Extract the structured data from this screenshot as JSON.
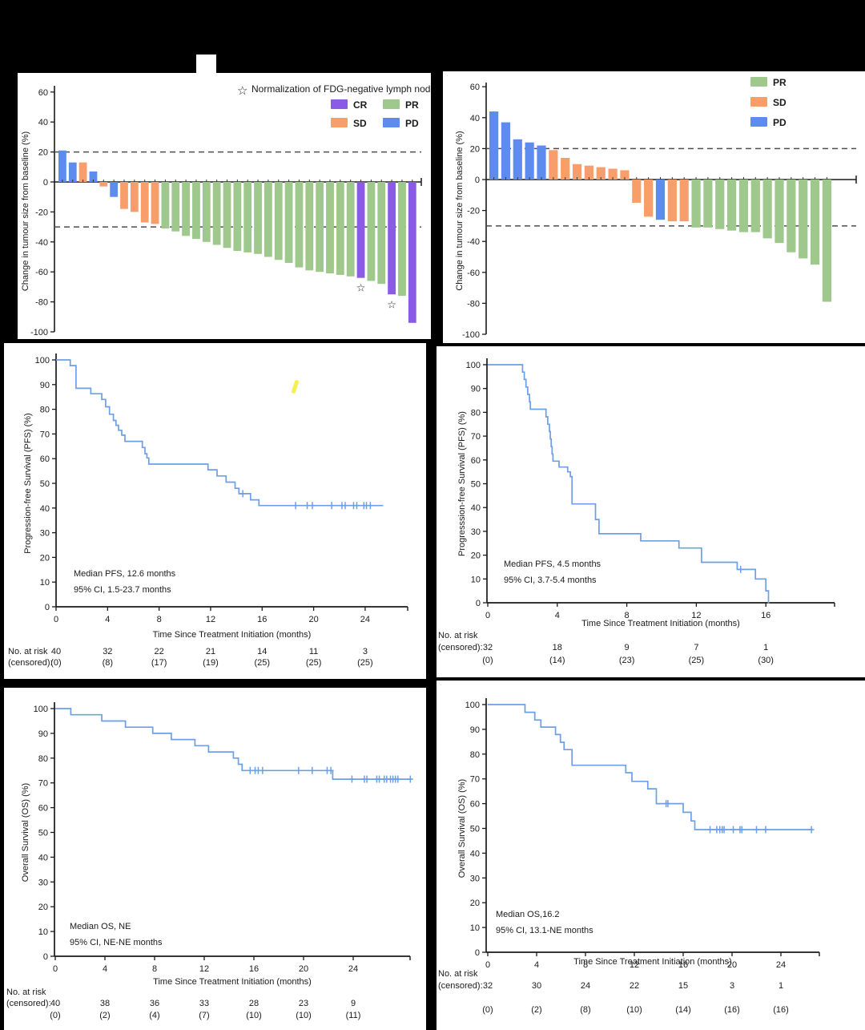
{
  "colors": {
    "page_background": "#000000",
    "panel_background": "#ffffff",
    "axis": "#1a1a1a",
    "dashed_reference": "#4d4d4d",
    "km_line": "#6d9fe6",
    "response_CR": "#8a5ce6",
    "response_SD": "#f89e6b",
    "response_PR": "#9fc98c",
    "response_PD": "#5c8cee",
    "pen_mark": "#f2ee3f"
  },
  "chart_data": [
    {
      "id": "waterfall_study_a",
      "type": "bar",
      "ylabel": "Change in tumour size from baseline (%)",
      "ylim": [
        -100,
        60
      ],
      "yticks": [
        60,
        40,
        20,
        0,
        -20,
        -40,
        -60,
        -80,
        -100
      ],
      "reference_lines": [
        20,
        -30
      ],
      "star_note": "Normalization of FDG-negative lymph node",
      "star_glyph": "☆",
      "legend": [
        {
          "label": "CR",
          "color_key": "response_CR"
        },
        {
          "label": "SD",
          "color_key": "response_SD"
        },
        {
          "label": "PR",
          "color_key": "response_PR"
        },
        {
          "label": "PD",
          "color_key": "response_PD"
        }
      ],
      "bars": [
        {
          "response": "PD",
          "value": 21
        },
        {
          "response": "PD",
          "value": 13
        },
        {
          "response": "SD",
          "value": 13
        },
        {
          "response": "PD",
          "value": 7
        },
        {
          "response": "SD",
          "value": -3
        },
        {
          "response": "PD",
          "value": -10
        },
        {
          "response": "SD",
          "value": -18
        },
        {
          "response": "SD",
          "value": -20
        },
        {
          "response": "SD",
          "value": -27
        },
        {
          "response": "SD",
          "value": -28
        },
        {
          "response": "PR",
          "value": -31
        },
        {
          "response": "PR",
          "value": -33
        },
        {
          "response": "PR",
          "value": -36
        },
        {
          "response": "PR",
          "value": -38
        },
        {
          "response": "PR",
          "value": -40
        },
        {
          "response": "PR",
          "value": -42
        },
        {
          "response": "PR",
          "value": -44
        },
        {
          "response": "PR",
          "value": -46
        },
        {
          "response": "PR",
          "value": -47
        },
        {
          "response": "PR",
          "value": -48
        },
        {
          "response": "PR",
          "value": -50
        },
        {
          "response": "PR",
          "value": -52
        },
        {
          "response": "PR",
          "value": -54
        },
        {
          "response": "PR",
          "value": -57
        },
        {
          "response": "PR",
          "value": -59
        },
        {
          "response": "PR",
          "value": -60
        },
        {
          "response": "PR",
          "value": -61
        },
        {
          "response": "PR",
          "value": -62
        },
        {
          "response": "PR",
          "value": -63
        },
        {
          "response": "CR",
          "value": -64,
          "star": true
        },
        {
          "response": "PR",
          "value": -66
        },
        {
          "response": "PR",
          "value": -68
        },
        {
          "response": "CR",
          "value": -75,
          "star": true
        },
        {
          "response": "PR",
          "value": -76
        },
        {
          "response": "CR",
          "value": -94
        }
      ]
    },
    {
      "id": "waterfall_study_b",
      "type": "bar",
      "ylabel": "Change in tumour size from baseline (%)",
      "ylim": [
        -100,
        60
      ],
      "yticks": [
        60,
        40,
        20,
        0,
        -20,
        -40,
        -60,
        -80,
        -100
      ],
      "reference_lines": [
        20,
        -30
      ],
      "legend": [
        {
          "label": "PR",
          "color_key": "response_PR"
        },
        {
          "label": "SD",
          "color_key": "response_SD"
        },
        {
          "label": "PD",
          "color_key": "response_PD"
        }
      ],
      "bars": [
        {
          "response": "PD",
          "value": 44
        },
        {
          "response": "PD",
          "value": 37
        },
        {
          "response": "PD",
          "value": 26
        },
        {
          "response": "PD",
          "value": 24
        },
        {
          "response": "PD",
          "value": 22
        },
        {
          "response": "SD",
          "value": 19
        },
        {
          "response": "SD",
          "value": 14
        },
        {
          "response": "SD",
          "value": 10
        },
        {
          "response": "SD",
          "value": 9
        },
        {
          "response": "SD",
          "value": 8
        },
        {
          "response": "SD",
          "value": 7
        },
        {
          "response": "SD",
          "value": 6
        },
        {
          "response": "SD",
          "value": -15
        },
        {
          "response": "SD",
          "value": -24
        },
        {
          "response": "PD",
          "value": -26
        },
        {
          "response": "SD",
          "value": -27
        },
        {
          "response": "SD",
          "value": -27
        },
        {
          "response": "PR",
          "value": -31
        },
        {
          "response": "PR",
          "value": -31
        },
        {
          "response": "PR",
          "value": -32
        },
        {
          "response": "PR",
          "value": -33
        },
        {
          "response": "PR",
          "value": -34
        },
        {
          "response": "PR",
          "value": -34
        },
        {
          "response": "PR",
          "value": -38
        },
        {
          "response": "PR",
          "value": -41
        },
        {
          "response": "PR",
          "value": -47
        },
        {
          "response": "PR",
          "value": -51
        },
        {
          "response": "PR",
          "value": -55
        },
        {
          "response": "PR",
          "value": -79
        }
      ]
    },
    {
      "id": "km_pfs_study_a",
      "type": "line",
      "ylabel": "Progression-free Survival (PFS) (%)",
      "xlabel": "Time Since Treatment Initiation (months)",
      "ylim": [
        0,
        100
      ],
      "yticks": [
        0,
        10,
        20,
        30,
        40,
        50,
        60,
        70,
        80,
        90,
        100
      ],
      "xticks": [
        0,
        4,
        8,
        12,
        16,
        20,
        24
      ],
      "annotation_lines": [
        "Median PFS, 12.6 months",
        "95% CI, 1.5-23.7 months"
      ],
      "start_value": 100,
      "curve_drops": [
        [
          1.1,
          97.7
        ],
        [
          1.55,
          88.5
        ],
        [
          2.7,
          86.3
        ],
        [
          3.55,
          84
        ],
        [
          3.85,
          81
        ],
        [
          4.15,
          78
        ],
        [
          4.45,
          75.5
        ],
        [
          4.65,
          73.5
        ],
        [
          4.85,
          71.5
        ],
        [
          5.1,
          69.5
        ],
        [
          5.35,
          67
        ],
        [
          6.7,
          64.5
        ],
        [
          6.9,
          62
        ],
        [
          7.05,
          60.3
        ],
        [
          7.2,
          57.8
        ],
        [
          11.8,
          55.5
        ],
        [
          12.5,
          53
        ],
        [
          13.2,
          50.5
        ],
        [
          13.9,
          48
        ],
        [
          14.2,
          45.8
        ],
        [
          15.1,
          43.3
        ],
        [
          15.75,
          41
        ]
      ],
      "curve_end": 25.4,
      "censor_marks": [
        [
          14.5,
          45.8
        ],
        [
          18.6,
          41
        ],
        [
          19.5,
          41
        ],
        [
          19.9,
          41
        ],
        [
          21.4,
          41
        ],
        [
          22.2,
          41
        ],
        [
          22.45,
          41
        ],
        [
          23.1,
          41
        ],
        [
          23.35,
          41
        ],
        [
          23.9,
          41
        ],
        [
          24.1,
          41
        ],
        [
          24.4,
          41
        ]
      ],
      "risk_table": {
        "row1_label": "No. at risk",
        "row2_label": "(censored):",
        "times": [
          0,
          4,
          8,
          12,
          16,
          20,
          24
        ],
        "at_risk": [
          "40",
          "32",
          "22",
          "21",
          "14",
          "11",
          "3"
        ],
        "censored": [
          "(0)",
          "(8)",
          "(17)",
          "(19)",
          "(25)",
          "(25)",
          "(25)"
        ]
      }
    },
    {
      "id": "km_pfs_study_b",
      "type": "line",
      "ylabel": "Progresssion-free Survival (PFS) (%)",
      "xlabel": "Time Since Treatment Initiation (months)",
      "ylim": [
        0,
        100
      ],
      "yticks": [
        0,
        10,
        20,
        30,
        40,
        50,
        60,
        70,
        80,
        90,
        100
      ],
      "xticks": [
        0,
        4,
        8,
        12,
        16
      ],
      "annotation_lines": [
        "Median PFS, 4.5 months",
        "95% CI, 3.7-5.4 months"
      ],
      "start_value": 100,
      "curve_drops": [
        [
          2.0,
          96.9
        ],
        [
          2.1,
          93.8
        ],
        [
          2.2,
          90.6
        ],
        [
          2.3,
          87.5
        ],
        [
          2.4,
          84.4
        ],
        [
          2.45,
          81.3
        ],
        [
          3.35,
          78.1
        ],
        [
          3.45,
          75
        ],
        [
          3.55,
          71.9
        ],
        [
          3.6,
          68.8
        ],
        [
          3.65,
          65.6
        ],
        [
          3.7,
          62.5
        ],
        [
          3.75,
          59.5
        ],
        [
          4.1,
          57
        ],
        [
          4.6,
          55
        ],
        [
          4.75,
          53
        ],
        [
          4.85,
          41.5
        ],
        [
          6.2,
          35
        ],
        [
          6.4,
          29
        ],
        [
          8.8,
          26
        ],
        [
          11.0,
          23
        ],
        [
          12.3,
          17
        ],
        [
          14.35,
          14
        ],
        [
          15.4,
          10
        ],
        [
          16.0,
          5
        ],
        [
          16.15,
          0
        ]
      ],
      "curve_end": 16.2,
      "censor_marks": [
        [
          14.55,
          14
        ]
      ],
      "risk_table": {
        "row1_label": "No. at risk",
        "row2_label": "(censored):",
        "times": [
          0,
          4,
          8,
          12,
          16
        ],
        "at_risk": [
          "32",
          "18",
          "9",
          "7",
          "1"
        ],
        "censored": [
          "(0)",
          "(14)",
          "(23)",
          "(25)",
          "(30)"
        ]
      }
    },
    {
      "id": "km_os_study_a",
      "type": "line",
      "ylabel": "Overall Survival (OS) (%)",
      "xlabel": "Time Since Treatment Initiation (months)",
      "ylim": [
        0,
        100
      ],
      "yticks": [
        0,
        10,
        20,
        30,
        40,
        50,
        60,
        70,
        80,
        90,
        100
      ],
      "xticks": [
        0,
        4,
        8,
        12,
        16,
        20,
        24
      ],
      "annotation_lines": [
        "Median OS, NE",
        "95% CI, NE-NE months"
      ],
      "start_value": 100,
      "curve_drops": [
        [
          1.25,
          97.5
        ],
        [
          3.75,
          95
        ],
        [
          5.65,
          92.5
        ],
        [
          7.85,
          90
        ],
        [
          9.35,
          87.5
        ],
        [
          11.25,
          85
        ],
        [
          12.35,
          82.5
        ],
        [
          14.35,
          80
        ],
        [
          14.75,
          77.5
        ],
        [
          15.05,
          75
        ],
        [
          22.35,
          71.5
        ]
      ],
      "curve_end": 28.7,
      "censor_marks": [
        [
          15.7,
          75
        ],
        [
          16.1,
          75
        ],
        [
          16.35,
          75
        ],
        [
          16.7,
          75
        ],
        [
          19.6,
          75
        ],
        [
          20.7,
          75
        ],
        [
          21.9,
          75
        ],
        [
          22.2,
          75
        ],
        [
          23.9,
          71.5
        ],
        [
          24.9,
          71.5
        ],
        [
          25.1,
          71.5
        ],
        [
          25.9,
          71.5
        ],
        [
          26.1,
          71.5
        ],
        [
          26.5,
          71.5
        ],
        [
          26.7,
          71.5
        ],
        [
          27.0,
          71.5
        ],
        [
          27.2,
          71.5
        ],
        [
          27.4,
          71.5
        ],
        [
          27.6,
          71.5
        ],
        [
          28.6,
          71.5
        ]
      ],
      "risk_table": {
        "row1_label": "No. at risk",
        "row2_label": "(censored):",
        "times": [
          0,
          4,
          8,
          12,
          16,
          20,
          24
        ],
        "at_risk": [
          "40",
          "38",
          "36",
          "33",
          "28",
          "23",
          "9"
        ],
        "censored": [
          "(0)",
          "(2)",
          "(4)",
          "(7)",
          "(10)",
          "(10)",
          "(11)"
        ]
      }
    },
    {
      "id": "km_os_study_b",
      "type": "line",
      "ylabel": "Overall Survival (OS) (%)",
      "xlabel": "Time Since Treatment Initiation (months)",
      "ylim": [
        0,
        100
      ],
      "yticks": [
        0,
        10,
        20,
        30,
        40,
        50,
        60,
        70,
        80,
        90,
        100
      ],
      "xticks": [
        0,
        4,
        8,
        12,
        16,
        20,
        24
      ],
      "annotation_lines": [
        "Median OS,16.2",
        "95% CI, 13.1-NE months"
      ],
      "start_value": 100,
      "curve_drops": [
        [
          3.05,
          96.9
        ],
        [
          3.85,
          93.8
        ],
        [
          4.35,
          90.9
        ],
        [
          5.55,
          87.9
        ],
        [
          5.95,
          84.8
        ],
        [
          6.25,
          81.8
        ],
        [
          6.9,
          75.5
        ],
        [
          11.3,
          72.5
        ],
        [
          11.8,
          69
        ],
        [
          13.1,
          66
        ],
        [
          13.8,
          60
        ],
        [
          16.0,
          56.5
        ],
        [
          16.65,
          53
        ],
        [
          16.95,
          49.5
        ]
      ],
      "curve_end": 26.6,
      "censor_marks": [
        [
          14.6,
          60
        ],
        [
          14.75,
          60
        ],
        [
          18.2,
          49.5
        ],
        [
          18.75,
          49.5
        ],
        [
          19.0,
          49.5
        ],
        [
          19.2,
          49.5
        ],
        [
          19.35,
          49.5
        ],
        [
          20.1,
          49.5
        ],
        [
          20.65,
          49.5
        ],
        [
          20.8,
          49.5
        ],
        [
          22.0,
          49.5
        ],
        [
          22.75,
          49.5
        ],
        [
          26.5,
          49.5
        ]
      ],
      "risk_table": {
        "row1_label": "No. at risk",
        "row2_label": "(censored):",
        "times": [
          0,
          4,
          8,
          12,
          16,
          20,
          24
        ],
        "at_risk": [
          "32",
          "30",
          "24",
          "22",
          "15",
          "3",
          "1"
        ],
        "censored": [
          "(0)",
          "(2)",
          "(8)",
          "(10)",
          "(14)",
          "(16)",
          "(16)"
        ]
      }
    }
  ]
}
